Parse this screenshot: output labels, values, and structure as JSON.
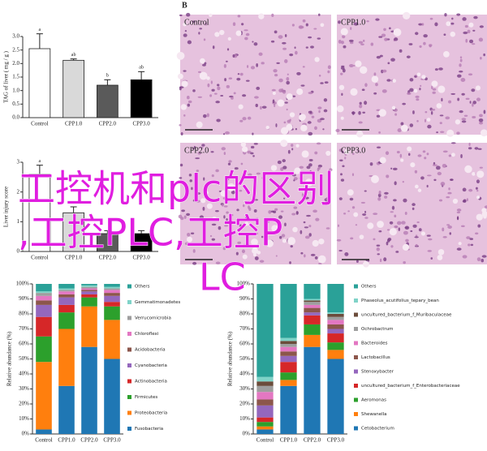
{
  "chart_data": [
    {
      "type": "bar",
      "y_label": "TAG of liver ( mg / g )",
      "categories": [
        "Control",
        "CPP1.0",
        "CPP2.0",
        "CPP3.0"
      ],
      "values": [
        2.55,
        2.12,
        1.2,
        1.4
      ],
      "errors": [
        0.55,
        0.05,
        0.2,
        0.3
      ],
      "letters": [
        "a",
        "ab",
        "b",
        "ab"
      ],
      "colors": [
        "#ffffff",
        "#d9d9d9",
        "#5a5a5a",
        "#000000"
      ],
      "ylim": [
        0,
        3
      ],
      "yticks": [
        {
          "value": 0,
          "label": "0.0"
        },
        0.5,
        {
          "value": 1,
          "label": "1.0"
        },
        1.5,
        {
          "value": 2,
          "label": "2.0"
        },
        2.5,
        {
          "value": 3,
          "label": "3.0"
        }
      ]
    },
    {
      "type": "bar",
      "y_label": "Liver injury score",
      "categories": [
        "Control",
        "CPP1.0",
        "CPP2.0",
        "CPP3.0"
      ],
      "values": [
        2.6,
        1.3,
        0.6,
        0.6
      ],
      "errors": [
        0.3,
        0.2,
        0.1,
        0.1
      ],
      "letters": [
        "a",
        null,
        null,
        null
      ],
      "colors": [
        "#ffffff",
        "#d9d9d9",
        "#5a5a5a",
        "#000000"
      ],
      "ylim": [
        0,
        3
      ],
      "yticks": [
        0,
        1,
        2,
        3
      ]
    },
    {
      "type": "stacked_bar",
      "y_label": "Relative abundance (%)",
      "categories": [
        "Control",
        "CPP1.0",
        "CPP2.0",
        "CPP3.0"
      ],
      "ylim": [
        0,
        100
      ],
      "yticks": [
        {
          "value": 0,
          "label": "0%"
        },
        {
          "value": 10,
          "label": "10%"
        },
        {
          "value": 20,
          "label": "20%"
        },
        {
          "value": 30,
          "label": "30%"
        },
        {
          "value": 40,
          "label": "40%"
        },
        {
          "value": 50,
          "label": "50%"
        },
        {
          "value": 60,
          "label": "60%"
        },
        {
          "value": 70,
          "label": "70%"
        },
        {
          "value": 80,
          "label": "80%"
        },
        {
          "value": 90,
          "label": "90%"
        },
        {
          "value": 100,
          "label": "100%"
        }
      ],
      "series": [
        {
          "name": "Others",
          "color": "#2aa198",
          "values": [
            5,
            3,
            1,
            2
          ]
        },
        {
          "name": "Gemmatimonadetes",
          "color": "#7fd3c8",
          "values": [
            1,
            1,
            1,
            1
          ]
        },
        {
          "name": "Verrucomicrobia",
          "color": "#9e9e9e",
          "values": [
            2,
            1,
            1,
            1
          ]
        },
        {
          "name": "Chloroflexi",
          "color": "#e377c2",
          "values": [
            3,
            2,
            1,
            2
          ]
        },
        {
          "name": "Acidobacteria",
          "color": "#8c564b",
          "values": [
            3,
            2,
            1,
            2
          ]
        },
        {
          "name": "Cyanobacteria",
          "color": "#9467bd",
          "values": [
            8,
            5,
            2,
            4
          ]
        },
        {
          "name": "Actinobacteria",
          "color": "#d62728",
          "values": [
            13,
            5,
            2,
            3
          ]
        },
        {
          "name": "Firmicutes",
          "color": "#2ca02c",
          "values": [
            17,
            11,
            6,
            9
          ]
        },
        {
          "name": "Proteobacteria",
          "color": "#ff7f0e",
          "values": [
            45,
            38,
            27,
            26
          ]
        },
        {
          "name": "Fusobacteria",
          "color": "#1f77b4",
          "values": [
            3,
            32,
            58,
            50
          ]
        }
      ]
    },
    {
      "type": "stacked_bar",
      "y_label": "Relative abundance (%)",
      "categories": [
        "Control",
        "CPP1.0",
        "CPP2.0",
        "CPP3.0"
      ],
      "ylim": [
        0,
        100
      ],
      "yticks": [
        {
          "value": 0,
          "label": "0%"
        },
        {
          "value": 10,
          "label": "10%"
        },
        {
          "value": 20,
          "label": "20%"
        },
        {
          "value": 30,
          "label": "30%"
        },
        {
          "value": 40,
          "label": "40%"
        },
        {
          "value": 50,
          "label": "50%"
        },
        {
          "value": 60,
          "label": "60%"
        },
        {
          "value": 70,
          "label": "70%"
        },
        {
          "value": 80,
          "label": "80%"
        },
        {
          "value": 90,
          "label": "90%"
        },
        {
          "value": 100,
          "label": "100%"
        }
      ],
      "series": [
        {
          "name": "Others",
          "color": "#2aa198",
          "values": [
            62,
            36,
            10,
            19
          ]
        },
        {
          "name": "Phaseolus_acutifolius_tepary_bean",
          "color": "#7fd3c8",
          "values": [
            3,
            2,
            1,
            1
          ]
        },
        {
          "name": "uncultured_bacterium_f_Muribaculaceae",
          "color": "#6b4c3b",
          "values": [
            3,
            2,
            1,
            2
          ]
        },
        {
          "name": "Ochrobactrum",
          "color": "#9e9e9e",
          "values": [
            4,
            2,
            2,
            2
          ]
        },
        {
          "name": "Bacteroides",
          "color": "#e377c2",
          "values": [
            5,
            3,
            2,
            3
          ]
        },
        {
          "name": "Lactobacillus",
          "color": "#8c564b",
          "values": [
            4,
            3,
            3,
            3
          ]
        },
        {
          "name": "Stenoxybacter",
          "color": "#9467bd",
          "values": [
            8,
            4,
            2,
            3
          ]
        },
        {
          "name": "uncultured_bacterium_f_Enterobacteriaceae",
          "color": "#d62728",
          "values": [
            3,
            7,
            6,
            6
          ]
        },
        {
          "name": "Aeromonas",
          "color": "#2ca02c",
          "values": [
            3,
            5,
            7,
            5
          ]
        },
        {
          "name": "Shewanella",
          "color": "#ff7f0e",
          "values": [
            2,
            4,
            8,
            6
          ]
        },
        {
          "name": "Cetobacterium",
          "color": "#1f77b4",
          "values": [
            3,
            32,
            58,
            50
          ]
        }
      ]
    }
  ],
  "figure_label": "B",
  "histology": {
    "panels": [
      "Control",
      "CPP1.0",
      "CPP2.0",
      "CPP3.0"
    ]
  },
  "overlay": {
    "lines": [
      "工控机和plc的区别",
      ",工控PLC,工控P",
      "LC"
    ]
  }
}
